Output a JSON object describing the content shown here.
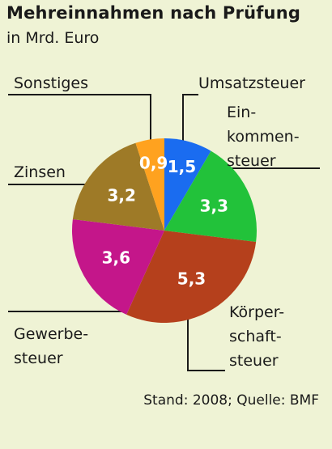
{
  "header": {
    "title": "Mehreinnahmen nach Prüfung",
    "subtitle": "in Mrd. Euro"
  },
  "footer": {
    "source": "Stand: 2008; Quelle: BMF"
  },
  "chart_data": {
    "type": "pie",
    "title": "Mehreinnahmen nach Prüfung",
    "subtitle": "in Mrd. Euro",
    "slices": [
      {
        "label": "Umsatzsteuer",
        "value": 1.5,
        "display": "1,5",
        "color": "#1a6cf0"
      },
      {
        "label": "Einkommensteuer",
        "display_label": "Ein-\nkommen-\nsteuer",
        "value": 3.3,
        "display": "3,3",
        "color": "#22c23a"
      },
      {
        "label": "Körperschaftsteuer",
        "display_label": "Körper-\nschaft-\nsteuer",
        "value": 5.3,
        "display": "5,3",
        "color": "#b5401c"
      },
      {
        "label": "Gewerbesteuer",
        "display_label": "Gewerbe-\nsteuer",
        "value": 3.6,
        "display": "3,6",
        "color": "#c4168a"
      },
      {
        "label": "Zinsen",
        "value": 3.2,
        "display": "3,2",
        "color": "#9e7a27"
      },
      {
        "label": "Sonstiges",
        "value": 0.9,
        "display": "0,9",
        "color": "#ffa21f"
      }
    ],
    "start_angle_deg": 0,
    "direction": "clockwise"
  }
}
